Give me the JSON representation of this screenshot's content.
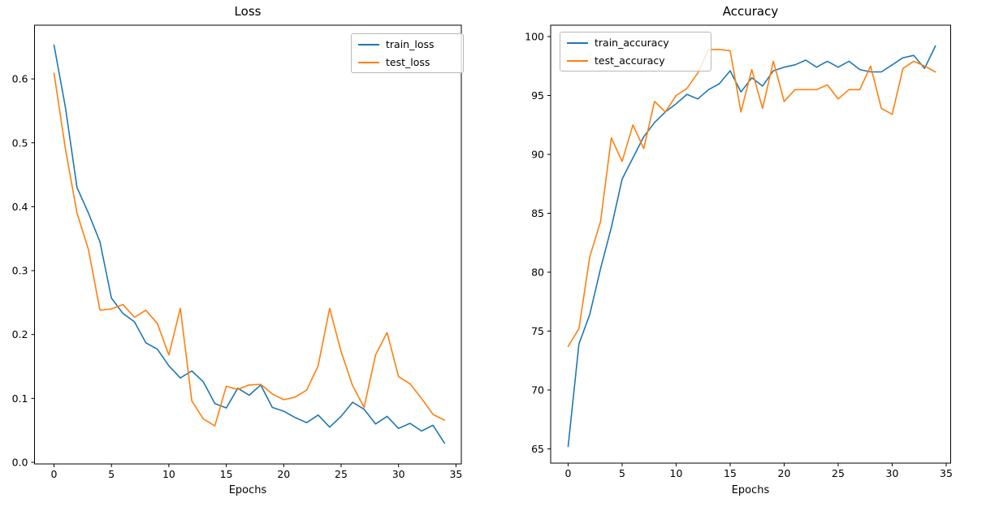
{
  "figure": {
    "background": "#ffffff",
    "text_color": "#000000",
    "spine_color": "#000000"
  },
  "palette": {
    "blue": "#1f77b4",
    "orange": "#ff7f0e"
  },
  "chart_data": [
    {
      "type": "line",
      "title": "Loss",
      "xlabel": "Epochs",
      "ylabel": "",
      "grid": false,
      "legend_position": "upper right",
      "x_ticks": [
        0,
        5,
        10,
        15,
        20,
        25,
        30,
        35
      ],
      "x_tick_labels": [
        "0",
        "5",
        "10",
        "15",
        "20",
        "25",
        "30",
        "35"
      ],
      "y_ticks": [
        0.0,
        0.1,
        0.2,
        0.3,
        0.4,
        0.5,
        0.6
      ],
      "y_tick_labels": [
        "0.0",
        "0.1",
        "0.2",
        "0.3",
        "0.4",
        "0.5",
        "0.6"
      ],
      "xlim": [
        -1.7,
        35.7
      ],
      "ylim": [
        0.0,
        0.684
      ],
      "x": [
        0,
        1,
        2,
        3,
        4,
        5,
        6,
        7,
        8,
        9,
        10,
        11,
        12,
        13,
        14,
        15,
        16,
        17,
        18,
        19,
        20,
        21,
        22,
        23,
        24,
        25,
        26,
        27,
        28,
        29,
        30,
        31,
        32,
        33,
        34
      ],
      "series": [
        {
          "name": "train_loss",
          "color": "#1f77b4",
          "values": [
            0.653,
            0.555,
            0.43,
            0.39,
            0.345,
            0.257,
            0.233,
            0.22,
            0.187,
            0.177,
            0.151,
            0.132,
            0.143,
            0.126,
            0.092,
            0.085,
            0.116,
            0.105,
            0.121,
            0.086,
            0.08,
            0.07,
            0.062,
            0.074,
            0.055,
            0.072,
            0.094,
            0.083,
            0.06,
            0.072,
            0.053,
            0.061,
            0.049,
            0.058,
            0.03
          ]
        },
        {
          "name": "test_loss",
          "color": "#ff7f0e",
          "values": [
            0.609,
            0.49,
            0.39,
            0.333,
            0.238,
            0.24,
            0.247,
            0.227,
            0.238,
            0.217,
            0.168,
            0.241,
            0.096,
            0.068,
            0.057,
            0.119,
            0.114,
            0.121,
            0.122,
            0.107,
            0.098,
            0.102,
            0.113,
            0.151,
            0.241,
            0.173,
            0.12,
            0.086,
            0.168,
            0.203,
            0.134,
            0.123,
            0.1,
            0.075,
            0.066
          ]
        }
      ]
    },
    {
      "type": "line",
      "title": "Accuracy",
      "xlabel": "Epochs",
      "ylabel": "",
      "grid": false,
      "legend_position": "upper left",
      "x_ticks": [
        0,
        5,
        10,
        15,
        20,
        25,
        30,
        35
      ],
      "x_tick_labels": [
        "0",
        "5",
        "10",
        "15",
        "20",
        "25",
        "30",
        "35"
      ],
      "y_ticks": [
        65,
        70,
        75,
        80,
        85,
        90,
        95,
        100
      ],
      "y_tick_labels": [
        "65",
        "70",
        "75",
        "80",
        "85",
        "90",
        "95",
        "100"
      ],
      "xlim": [
        -1.7,
        35.7
      ],
      "ylim": [
        63.5,
        100.7
      ],
      "x": [
        0,
        1,
        2,
        3,
        4,
        5,
        6,
        7,
        8,
        9,
        10,
        11,
        12,
        13,
        14,
        15,
        16,
        17,
        18,
        19,
        20,
        21,
        22,
        23,
        24,
        25,
        26,
        27,
        28,
        29,
        30,
        31,
        32,
        33,
        34
      ],
      "series": [
        {
          "name": "train_accuracy",
          "color": "#1f77b4",
          "values": [
            65.2,
            73.9,
            76.4,
            80.3,
            83.8,
            87.9,
            89.7,
            91.5,
            92.7,
            93.6,
            94.3,
            95.1,
            94.7,
            95.5,
            96.0,
            97.1,
            95.3,
            96.5,
            95.8,
            97.1,
            97.4,
            97.6,
            98.0,
            97.4,
            97.9,
            97.4,
            97.9,
            97.2,
            97.0,
            97.0,
            97.6,
            98.2,
            98.4,
            97.3,
            99.2
          ]
        },
        {
          "name": "test_accuracy",
          "color": "#ff7f0e",
          "values": [
            73.7,
            75.2,
            81.3,
            84.3,
            91.4,
            89.4,
            92.5,
            90.5,
            94.5,
            93.6,
            95.0,
            95.6,
            96.9,
            98.9,
            98.9,
            98.8,
            93.6,
            97.2,
            93.9,
            97.9,
            94.5,
            95.5,
            95.5,
            95.5,
            95.9,
            94.7,
            95.5,
            95.5,
            97.5,
            93.9,
            93.4,
            97.3,
            97.9,
            97.5,
            97.0
          ]
        }
      ]
    }
  ]
}
